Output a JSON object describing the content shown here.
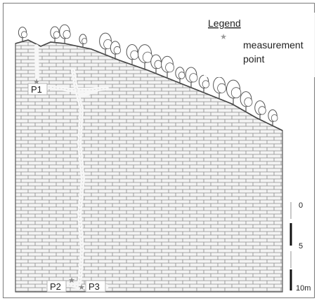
{
  "legend": {
    "title": "Legend",
    "symbol_icon": "star-icon",
    "entry_line1": "measurement",
    "entry_line2": "point"
  },
  "points": [
    {
      "id": "P1",
      "label": "P1"
    },
    {
      "id": "P2",
      "label": "P2"
    },
    {
      "id": "P3",
      "label": "P3"
    }
  ],
  "scale": {
    "unit": "m",
    "ticks": [
      "0",
      "5",
      "10m"
    ]
  },
  "colors": {
    "brick_fill": "#f4f4f4",
    "brick_lines": "#8a8a8a",
    "cave_passage": "#f7f7f7",
    "tree_outline": "#555555",
    "star": "#8a8a8a",
    "scale_bar": "#111111"
  }
}
